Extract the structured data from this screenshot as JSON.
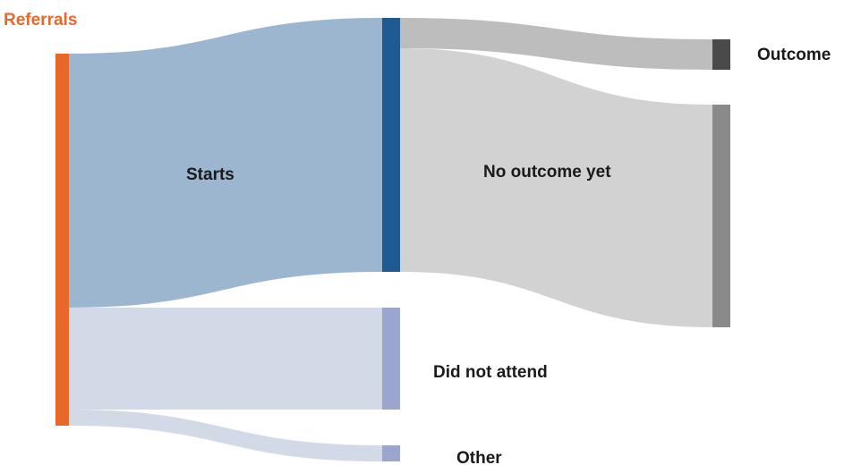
{
  "diagram": {
    "type": "sankey",
    "nodes": [
      {
        "id": "referrals",
        "label": "Referrals",
        "color": "#E8672A"
      },
      {
        "id": "starts",
        "label": "Starts",
        "color": "#1F5A92"
      },
      {
        "id": "did_not_attend",
        "label": "Did not attend",
        "color": "#9AA6CD"
      },
      {
        "id": "other",
        "label": "Other",
        "color": "#9AA6CD"
      },
      {
        "id": "outcome",
        "label": "Outcome",
        "color": "#4A4A4A"
      },
      {
        "id": "no_outcome_yet",
        "label": "No outcome yet",
        "color": "#8A8A8A"
      }
    ],
    "links": [
      {
        "source": "referrals",
        "target": "starts",
        "color": "#9DB6D0"
      },
      {
        "source": "referrals",
        "target": "did_not_attend",
        "color": "#D3DAE7"
      },
      {
        "source": "referrals",
        "target": "other",
        "color": "#D3DAE7"
      },
      {
        "source": "starts",
        "target": "outcome",
        "color": "#BDBDBD"
      },
      {
        "source": "starts",
        "target": "no_outcome_yet",
        "color": "#D2D2D2"
      }
    ]
  }
}
